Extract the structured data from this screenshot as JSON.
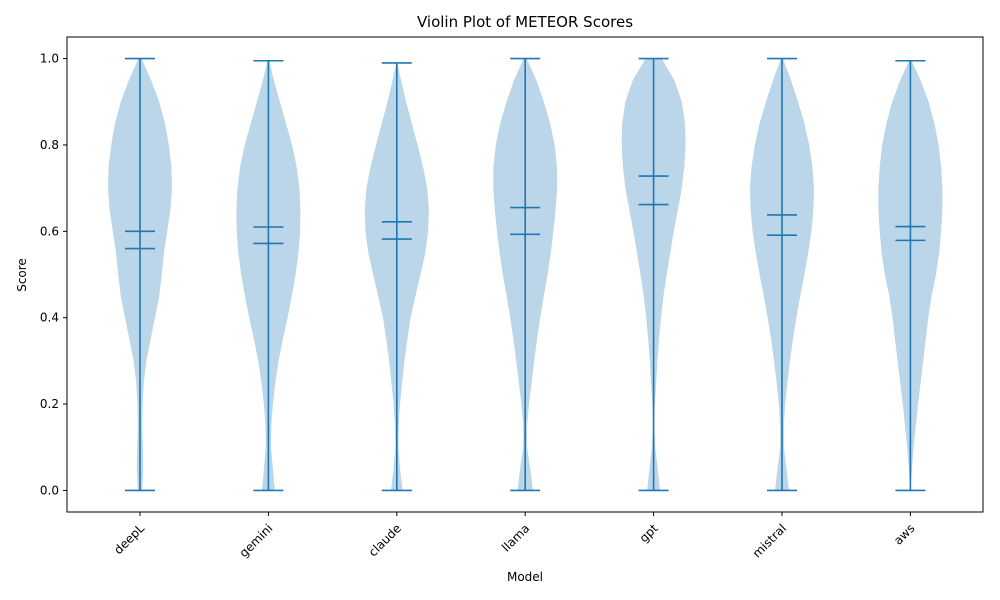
{
  "chart_data": {
    "type": "violin",
    "title": "Violin Plot of METEOR Scores",
    "xlabel": "Model",
    "ylabel": "Score",
    "ylim": [
      -0.05,
      1.05
    ],
    "yticks": [
      "0.0",
      "0.2",
      "0.4",
      "0.6",
      "0.8",
      "1.0"
    ],
    "categories": [
      "deepL",
      "gemini",
      "claude",
      "llama",
      "gpt",
      "mistral",
      "aws"
    ],
    "series": [
      {
        "name": "deepL",
        "min": 0.0,
        "max": 1.0,
        "mean": 0.6,
        "median": 0.56,
        "density": [
          [
            0.0,
            0.07
          ],
          [
            0.05,
            0.1
          ],
          [
            0.1,
            0.09
          ],
          [
            0.15,
            0.07
          ],
          [
            0.2,
            0.08
          ],
          [
            0.25,
            0.12
          ],
          [
            0.3,
            0.2
          ],
          [
            0.35,
            0.33
          ],
          [
            0.4,
            0.47
          ],
          [
            0.45,
            0.6
          ],
          [
            0.5,
            0.68
          ],
          [
            0.55,
            0.75
          ],
          [
            0.6,
            0.85
          ],
          [
            0.65,
            0.95
          ],
          [
            0.7,
            1.0
          ],
          [
            0.75,
            0.98
          ],
          [
            0.8,
            0.9
          ],
          [
            0.85,
            0.78
          ],
          [
            0.9,
            0.6
          ],
          [
            0.95,
            0.35
          ],
          [
            1.0,
            0.05
          ]
        ]
      },
      {
        "name": "gemini",
        "min": 0.0,
        "max": 0.995,
        "mean": 0.61,
        "median": 0.572,
        "density": [
          [
            0.0,
            0.2
          ],
          [
            0.05,
            0.14
          ],
          [
            0.1,
            0.08
          ],
          [
            0.15,
            0.09
          ],
          [
            0.2,
            0.14
          ],
          [
            0.25,
            0.22
          ],
          [
            0.3,
            0.32
          ],
          [
            0.35,
            0.45
          ],
          [
            0.4,
            0.6
          ],
          [
            0.45,
            0.73
          ],
          [
            0.5,
            0.85
          ],
          [
            0.55,
            0.94
          ],
          [
            0.6,
            0.99
          ],
          [
            0.65,
            1.0
          ],
          [
            0.7,
            0.97
          ],
          [
            0.75,
            0.88
          ],
          [
            0.8,
            0.74
          ],
          [
            0.85,
            0.55
          ],
          [
            0.9,
            0.36
          ],
          [
            0.95,
            0.17
          ],
          [
            0.995,
            0.03
          ]
        ]
      },
      {
        "name": "claude",
        "min": 0.0,
        "max": 0.99,
        "mean": 0.622,
        "median": 0.582,
        "density": [
          [
            0.0,
            0.18
          ],
          [
            0.05,
            0.1
          ],
          [
            0.1,
            0.05
          ],
          [
            0.15,
            0.06
          ],
          [
            0.2,
            0.1
          ],
          [
            0.25,
            0.17
          ],
          [
            0.3,
            0.24
          ],
          [
            0.35,
            0.33
          ],
          [
            0.4,
            0.43
          ],
          [
            0.45,
            0.58
          ],
          [
            0.5,
            0.74
          ],
          [
            0.55,
            0.89
          ],
          [
            0.6,
            0.98
          ],
          [
            0.65,
            1.0
          ],
          [
            0.7,
            0.95
          ],
          [
            0.75,
            0.82
          ],
          [
            0.8,
            0.65
          ],
          [
            0.85,
            0.47
          ],
          [
            0.9,
            0.29
          ],
          [
            0.95,
            0.13
          ],
          [
            0.99,
            0.02
          ]
        ]
      },
      {
        "name": "llama",
        "min": 0.0,
        "max": 1.0,
        "mean": 0.655,
        "median": 0.593,
        "density": [
          [
            0.0,
            0.24
          ],
          [
            0.05,
            0.16
          ],
          [
            0.1,
            0.06
          ],
          [
            0.15,
            0.06
          ],
          [
            0.2,
            0.12
          ],
          [
            0.25,
            0.2
          ],
          [
            0.3,
            0.28
          ],
          [
            0.35,
            0.37
          ],
          [
            0.4,
            0.47
          ],
          [
            0.45,
            0.58
          ],
          [
            0.5,
            0.7
          ],
          [
            0.55,
            0.8
          ],
          [
            0.6,
            0.88
          ],
          [
            0.65,
            0.95
          ],
          [
            0.7,
            1.0
          ],
          [
            0.75,
            0.99
          ],
          [
            0.8,
            0.92
          ],
          [
            0.85,
            0.78
          ],
          [
            0.9,
            0.58
          ],
          [
            0.95,
            0.35
          ],
          [
            1.0,
            0.05
          ]
        ]
      },
      {
        "name": "gpt",
        "min": 0.0,
        "max": 1.0,
        "mean": 0.728,
        "median": 0.662,
        "density": [
          [
            0.0,
            0.2
          ],
          [
            0.05,
            0.13
          ],
          [
            0.1,
            0.05
          ],
          [
            0.15,
            0.02
          ],
          [
            0.2,
            0.04
          ],
          [
            0.25,
            0.08
          ],
          [
            0.3,
            0.12
          ],
          [
            0.35,
            0.17
          ],
          [
            0.4,
            0.23
          ],
          [
            0.45,
            0.31
          ],
          [
            0.5,
            0.41
          ],
          [
            0.55,
            0.52
          ],
          [
            0.6,
            0.63
          ],
          [
            0.65,
            0.76
          ],
          [
            0.7,
            0.88
          ],
          [
            0.75,
            0.96
          ],
          [
            0.8,
            1.0
          ],
          [
            0.85,
            0.98
          ],
          [
            0.9,
            0.88
          ],
          [
            0.95,
            0.65
          ],
          [
            1.0,
            0.25
          ]
        ]
      },
      {
        "name": "mistral",
        "min": 0.0,
        "max": 1.0,
        "mean": 0.638,
        "median": 0.591,
        "density": [
          [
            0.0,
            0.22
          ],
          [
            0.05,
            0.14
          ],
          [
            0.1,
            0.06
          ],
          [
            0.15,
            0.06
          ],
          [
            0.2,
            0.1
          ],
          [
            0.25,
            0.17
          ],
          [
            0.3,
            0.25
          ],
          [
            0.35,
            0.34
          ],
          [
            0.4,
            0.45
          ],
          [
            0.45,
            0.57
          ],
          [
            0.5,
            0.7
          ],
          [
            0.55,
            0.82
          ],
          [
            0.6,
            0.92
          ],
          [
            0.65,
            0.98
          ],
          [
            0.7,
            1.0
          ],
          [
            0.75,
            0.95
          ],
          [
            0.8,
            0.85
          ],
          [
            0.85,
            0.7
          ],
          [
            0.9,
            0.5
          ],
          [
            0.95,
            0.28
          ],
          [
            1.0,
            0.03
          ]
        ]
      },
      {
        "name": "aws",
        "min": 0.0,
        "max": 0.995,
        "mean": 0.611,
        "median": 0.579,
        "density": [
          [
            0.0,
            0.0
          ],
          [
            0.05,
            0.05
          ],
          [
            0.1,
            0.1
          ],
          [
            0.15,
            0.17
          ],
          [
            0.2,
            0.24
          ],
          [
            0.25,
            0.32
          ],
          [
            0.3,
            0.4
          ],
          [
            0.35,
            0.48
          ],
          [
            0.4,
            0.56
          ],
          [
            0.45,
            0.66
          ],
          [
            0.5,
            0.8
          ],
          [
            0.55,
            0.9
          ],
          [
            0.6,
            0.96
          ],
          [
            0.65,
            1.0
          ],
          [
            0.7,
            1.0
          ],
          [
            0.75,
            0.96
          ],
          [
            0.8,
            0.88
          ],
          [
            0.85,
            0.75
          ],
          [
            0.9,
            0.57
          ],
          [
            0.95,
            0.32
          ],
          [
            0.995,
            0.04
          ]
        ]
      }
    ],
    "colors": {
      "body": "#1f77b4",
      "body_opacity": "0.3",
      "lines": "#1f77b4"
    }
  }
}
